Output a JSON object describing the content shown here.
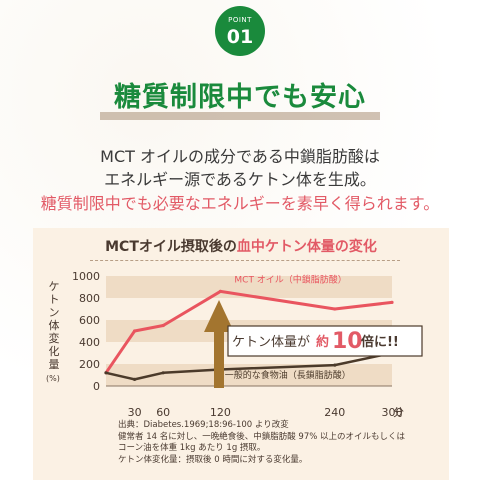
{
  "badge": {
    "label": "POINT",
    "number": "01"
  },
  "headline": "糖質制限中でも安心",
  "body": {
    "line1": "MCT オイルの成分である中鎖脂肪酸は",
    "line2": "エネルギー源であるケトン体を生成。",
    "line3": "糖質制限中でも必要なエネルギーを素早く得られます。"
  },
  "chart_title": {
    "prefix": "MCTオイル摂取後の",
    "highlight": "血中ケトン体量の変化"
  },
  "y_axis_label": "ケトン体変化量",
  "y_axis_unit": "(%)",
  "x_axis_unit": "分",
  "callout": {
    "prefix": "ケトン体量が",
    "mid": "約",
    "number": "10",
    "suffix": "倍に!!"
  },
  "colors": {
    "mct": "#e9555f",
    "oil": "#4b3a2a",
    "arrow": "#a3752f",
    "band": "#efdcc5",
    "green": "#1a8a3c"
  },
  "chart_data": {
    "type": "line",
    "x": [
      0,
      30,
      60,
      120,
      240,
      300
    ],
    "xticks": [
      30,
      60,
      120,
      240,
      300
    ],
    "yticks": [
      0,
      200,
      400,
      600,
      800,
      1000
    ],
    "xlim": [
      0,
      300
    ],
    "ylim": [
      0,
      1000
    ],
    "series": [
      {
        "name": "MCT オイル（中鎖脂肪酸）",
        "values": [
          120,
          500,
          550,
          860,
          700,
          760
        ]
      },
      {
        "name": "一般的な食物油（長鎖脂肪酸）",
        "values": [
          120,
          60,
          120,
          150,
          190,
          300
        ]
      }
    ]
  },
  "source": {
    "line1": "出典：Diabetes.1969;18:96-100 より改変",
    "line2": "健常者 14 名に対し、一晩絶食後、中鎖脂肪酸 97% 以上のオイルもしくは",
    "line3": "コーン油を体重 1kg あたり 1g 摂取。",
    "line4": "ケトン体変化量：摂取後 0 時間に対する変化量。"
  }
}
